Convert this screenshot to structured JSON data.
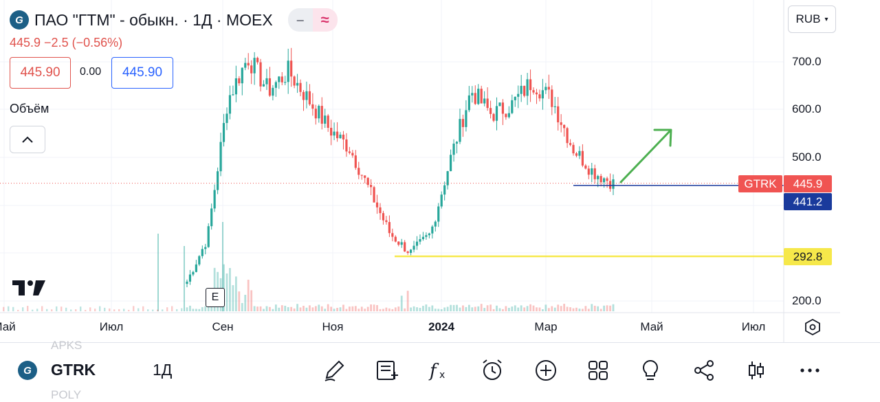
{
  "header": {
    "title": "ПАО \"ГТМ\" - обыкн. · 1Д · MOEX",
    "logo_icon": "gtm-logo-icon",
    "price_change": "445.9  −2.5 (−0.56%)",
    "sell_price": "445.90",
    "spread": "0.00",
    "buy_price": "445.90",
    "volume_label": "Объём",
    "pill_minus": "‒",
    "pill_wave": "≈"
  },
  "currency": {
    "label": "RUB"
  },
  "axis": {
    "y_ticks": [
      "700.0",
      "600.0",
      "500.0",
      "200.0"
    ],
    "x_ticks": [
      "Май",
      "Июл",
      "Сен",
      "Ноя",
      "2024",
      "Мар",
      "Май",
      "Июл"
    ]
  },
  "badges": {
    "symbol": "GTRK",
    "last_price": "445.9",
    "level_1": "441.2",
    "level_2": "292.8"
  },
  "earnings_marker": "E",
  "colors": {
    "up": "#26a69a",
    "down": "#ef5350",
    "symbol_badge": "#f05452",
    "level_blue": "#1a3a9c",
    "level_yellow": "#f6e84a",
    "arrow": "#4caf50"
  },
  "chart_data": {
    "type": "candlestick",
    "symbol": "GTRK",
    "interval": "1Д",
    "exchange": "MOEX",
    "last_price": 445.9,
    "change": -2.5,
    "change_percent": -0.56,
    "ylim": [
      180,
      760
    ],
    "y_ticks": [
      200,
      500,
      600,
      700
    ],
    "x_ticks": [
      "Май",
      "Июл",
      "Сен",
      "Ноя",
      "2024",
      "Мар",
      "Май",
      "Июл"
    ],
    "horizontal_levels": [
      {
        "value": 441.2,
        "color": "#1a3a9c"
      },
      {
        "value": 292.8,
        "color": "#f6e84a"
      },
      {
        "value": 445.9,
        "color": "#ef5350",
        "style": "dotted"
      }
    ],
    "approx_close_path": [
      {
        "date": "Авг",
        "close": 240
      },
      {
        "date": "Авг",
        "close": 330
      },
      {
        "date": "Сен",
        "close": 620
      },
      {
        "date": "Сен",
        "close": 710
      },
      {
        "date": "Сен",
        "close": 640
      },
      {
        "date": "Окт",
        "close": 680
      },
      {
        "date": "Окт",
        "close": 620
      },
      {
        "date": "Ноя",
        "close": 560
      },
      {
        "date": "Ноя",
        "close": 520
      },
      {
        "date": "Ноя",
        "close": 430
      },
      {
        "date": "Дек",
        "close": 340
      },
      {
        "date": "Дек",
        "close": 300
      },
      {
        "date": "Дек",
        "close": 340
      },
      {
        "date": "2024",
        "close": 500
      },
      {
        "date": "Янв",
        "close": 640
      },
      {
        "date": "Янв",
        "close": 590
      },
      {
        "date": "Фев",
        "close": 610
      },
      {
        "date": "Фев",
        "close": 660
      },
      {
        "date": "Фев",
        "close": 620
      },
      {
        "date": "Мар",
        "close": 520
      },
      {
        "date": "Мар",
        "close": 470
      },
      {
        "date": "Апр",
        "close": 446
      }
    ]
  },
  "bottom_bar": {
    "ghost_above": "APKS",
    "ghost_below": "POLY",
    "symbol": "GTRK",
    "interval": "1Д",
    "tools": [
      {
        "icon": "brush-icon"
      },
      {
        "icon": "note-add-icon"
      },
      {
        "icon": "function-icon"
      },
      {
        "icon": "alarm-icon"
      },
      {
        "icon": "plus-circle-icon"
      },
      {
        "icon": "grid-icon"
      },
      {
        "icon": "idea-bulb-icon"
      },
      {
        "icon": "share-icon"
      },
      {
        "icon": "candles-icon"
      },
      {
        "icon": "more-icon"
      }
    ]
  }
}
